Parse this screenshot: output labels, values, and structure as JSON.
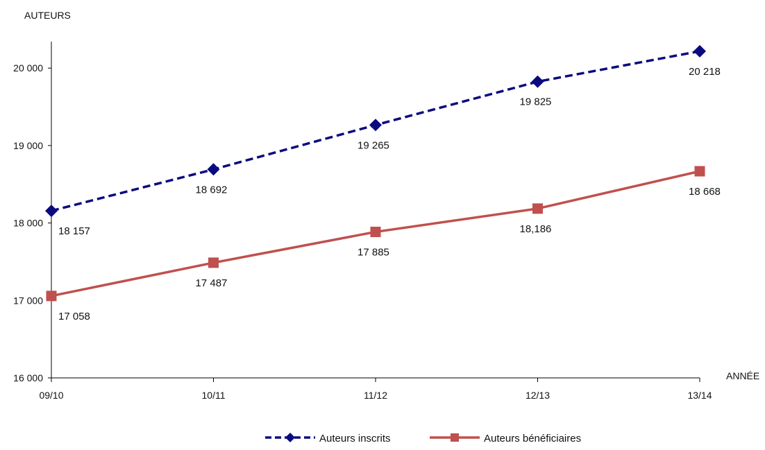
{
  "chart_data": {
    "type": "line",
    "title": "",
    "ylabel": "AUTEURS",
    "xlabel": "ANNÉE",
    "categories": [
      "09/10",
      "10/11",
      "11/12",
      "12/13",
      "13/14"
    ],
    "ylim": [
      16000,
      20500
    ],
    "yticks": [
      16000,
      17000,
      18000,
      19000,
      20000
    ],
    "ytick_labels": [
      "16 000",
      "17 000",
      "18 000",
      "19 000",
      "20 000"
    ],
    "grid": false,
    "legend_position": "bottom",
    "series": [
      {
        "name": "Auteurs inscrits",
        "values": [
          18157,
          18692,
          19265,
          19825,
          20218
        ],
        "labels": [
          "18 157",
          "18 692",
          "19 265",
          "19 825",
          "20 218"
        ],
        "color": "#0a0a80",
        "line_style": "dashed",
        "marker": "diamond"
      },
      {
        "name": "Auteurs bénéficiaires",
        "values": [
          17058,
          17487,
          17885,
          18186,
          18668
        ],
        "labels": [
          "17 058",
          "17 487",
          "17 885",
          "18,186",
          "18 668"
        ],
        "color": "#c0504d",
        "line_style": "solid",
        "marker": "square"
      }
    ]
  }
}
